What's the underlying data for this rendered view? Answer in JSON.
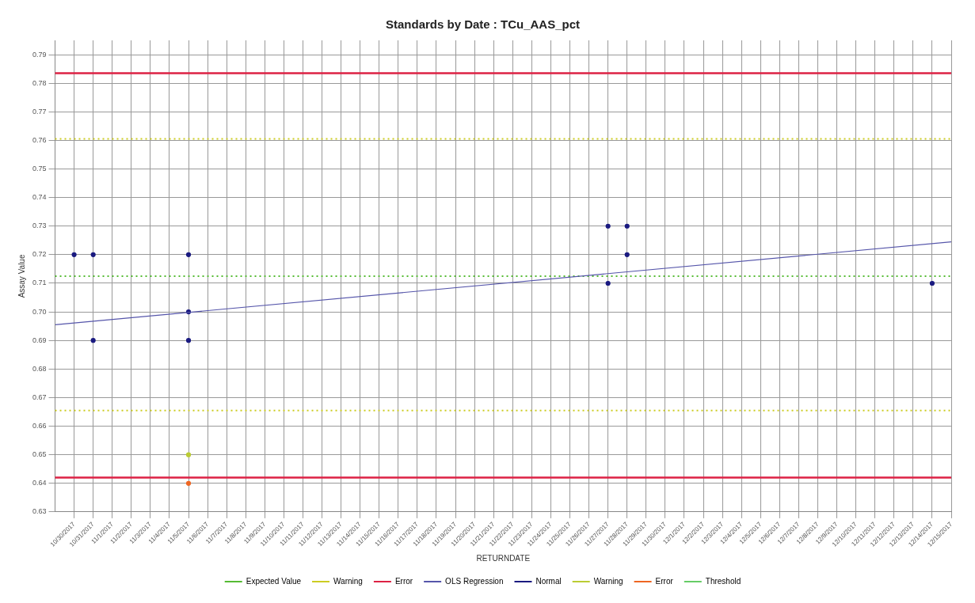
{
  "chart_data": {
    "type": "scatter",
    "title": "Standards by Date : TCu_AAS_pct",
    "xlabel": "RETURNDATE",
    "ylabel": "Assay Value",
    "xlim": [
      "2017-10-29",
      "2017-12-15"
    ],
    "ylim": [
      0.63,
      0.795
    ],
    "yticks": [
      {
        "value": 0.63,
        "label": "0.63"
      },
      {
        "value": 0.64,
        "label": "0.64"
      },
      {
        "value": 0.65,
        "label": "0.65"
      },
      {
        "value": 0.66,
        "label": "0.66"
      },
      {
        "value": 0.67,
        "label": "0.67"
      },
      {
        "value": 0.68,
        "label": "0.68"
      },
      {
        "value": 0.69,
        "label": "0.69"
      },
      {
        "value": 0.7,
        "label": "0.70"
      },
      {
        "value": 0.71,
        "label": "0.71"
      },
      {
        "value": 0.72,
        "label": "0.72"
      },
      {
        "value": 0.73,
        "label": "0.73"
      },
      {
        "value": 0.74,
        "label": "0.74"
      },
      {
        "value": 0.75,
        "label": "0.75"
      },
      {
        "value": 0.76,
        "label": "0.76"
      },
      {
        "value": 0.77,
        "label": "0.77"
      },
      {
        "value": 0.78,
        "label": "0.78"
      },
      {
        "value": 0.79,
        "label": "0.79"
      }
    ],
    "xticks": [
      {
        "value": "2017-10-30",
        "label": "10/30/2017"
      },
      {
        "value": "2017-10-31",
        "label": "10/31/2017"
      },
      {
        "value": "2017-11-01",
        "label": "11/1/2017"
      },
      {
        "value": "2017-11-02",
        "label": "11/2/2017"
      },
      {
        "value": "2017-11-03",
        "label": "11/3/2017"
      },
      {
        "value": "2017-11-04",
        "label": "11/4/2017"
      },
      {
        "value": "2017-11-05",
        "label": "11/5/2017"
      },
      {
        "value": "2017-11-06",
        "label": "11/6/2017"
      },
      {
        "value": "2017-11-07",
        "label": "11/7/2017"
      },
      {
        "value": "2017-11-08",
        "label": "11/8/2017"
      },
      {
        "value": "2017-11-09",
        "label": "11/9/2017"
      },
      {
        "value": "2017-11-10",
        "label": "11/10/2017"
      },
      {
        "value": "2017-11-11",
        "label": "11/11/2017"
      },
      {
        "value": "2017-11-12",
        "label": "11/12/2017"
      },
      {
        "value": "2017-11-13",
        "label": "11/13/2017"
      },
      {
        "value": "2017-11-14",
        "label": "11/14/2017"
      },
      {
        "value": "2017-11-15",
        "label": "11/15/2017"
      },
      {
        "value": "2017-11-16",
        "label": "11/16/2017"
      },
      {
        "value": "2017-11-17",
        "label": "11/17/2017"
      },
      {
        "value": "2017-11-18",
        "label": "11/18/2017"
      },
      {
        "value": "2017-11-19",
        "label": "11/19/2017"
      },
      {
        "value": "2017-11-20",
        "label": "11/20/2017"
      },
      {
        "value": "2017-11-21",
        "label": "11/21/2017"
      },
      {
        "value": "2017-11-22",
        "label": "11/22/2017"
      },
      {
        "value": "2017-11-23",
        "label": "11/23/2017"
      },
      {
        "value": "2017-11-24",
        "label": "11/24/2017"
      },
      {
        "value": "2017-11-25",
        "label": "11/25/2017"
      },
      {
        "value": "2017-11-26",
        "label": "11/26/2017"
      },
      {
        "value": "2017-11-27",
        "label": "11/27/2017"
      },
      {
        "value": "2017-11-28",
        "label": "11/28/2017"
      },
      {
        "value": "2017-11-29",
        "label": "11/29/2017"
      },
      {
        "value": "2017-11-30",
        "label": "11/30/2017"
      },
      {
        "value": "2017-12-01",
        "label": "12/1/2017"
      },
      {
        "value": "2017-12-02",
        "label": "12/2/2017"
      },
      {
        "value": "2017-12-03",
        "label": "12/3/2017"
      },
      {
        "value": "2017-12-04",
        "label": "12/4/2017"
      },
      {
        "value": "2017-12-05",
        "label": "12/5/2017"
      },
      {
        "value": "2017-12-06",
        "label": "12/6/2017"
      },
      {
        "value": "2017-12-07",
        "label": "12/7/2017"
      },
      {
        "value": "2017-12-08",
        "label": "12/8/2017"
      },
      {
        "value": "2017-12-09",
        "label": "12/9/2017"
      },
      {
        "value": "2017-12-10",
        "label": "12/10/2017"
      },
      {
        "value": "2017-12-11",
        "label": "12/11/2017"
      },
      {
        "value": "2017-12-12",
        "label": "12/12/2017"
      },
      {
        "value": "2017-12-13",
        "label": "12/13/2017"
      },
      {
        "value": "2017-12-14",
        "label": "12/14/2017"
      },
      {
        "value": "2017-12-15",
        "label": "12/15/2017"
      }
    ],
    "grid": true,
    "legend": "bottom",
    "marker": "circle",
    "ref_lines": [
      {
        "axis": "y",
        "value": 0.7125,
        "label": "Expected Value",
        "color": "#55bb33",
        "line_style": "dotted"
      },
      {
        "axis": "y",
        "value": 0.7605,
        "label": "Warning",
        "color": "#cccc22",
        "line_style": "dotted"
      },
      {
        "axis": "y",
        "value": 0.6655,
        "label": null,
        "color": "#cccc22",
        "line_style": "dotted"
      },
      {
        "axis": "y",
        "value": 0.7835,
        "label": "Error",
        "color": "#dd2244",
        "line_style": "solid"
      },
      {
        "axis": "y",
        "value": 0.642,
        "label": null,
        "color": "#dd2244",
        "line_style": "solid"
      }
    ],
    "series": [
      {
        "name": "OLS Regression",
        "type": "line",
        "color": "#5555aa",
        "marker": "none",
        "x": [
          "2017-10-29",
          "2017-12-15"
        ],
        "values": [
          0.6955,
          0.7245
        ]
      },
      {
        "name": "Normal",
        "color": "#1a1a80",
        "x": [
          "2017-10-30",
          "2017-10-31",
          "2017-10-31",
          "2017-11-05",
          "2017-11-05",
          "2017-11-05",
          "2017-11-27",
          "2017-11-27",
          "2017-11-28",
          "2017-11-28",
          "2017-12-14"
        ],
        "values": [
          0.72,
          0.72,
          0.69,
          0.72,
          0.7,
          0.69,
          0.73,
          0.71,
          0.73,
          0.72,
          0.71
        ]
      },
      {
        "name": "Warning",
        "color": "#bbcc33",
        "x": [
          "2017-11-05"
        ],
        "values": [
          0.65
        ]
      },
      {
        "name": "Error",
        "color": "#ee6622",
        "x": [
          "2017-11-05"
        ],
        "values": [
          0.64
        ]
      },
      {
        "name": "Threshold",
        "color": "#66cc66"
      }
    ]
  }
}
